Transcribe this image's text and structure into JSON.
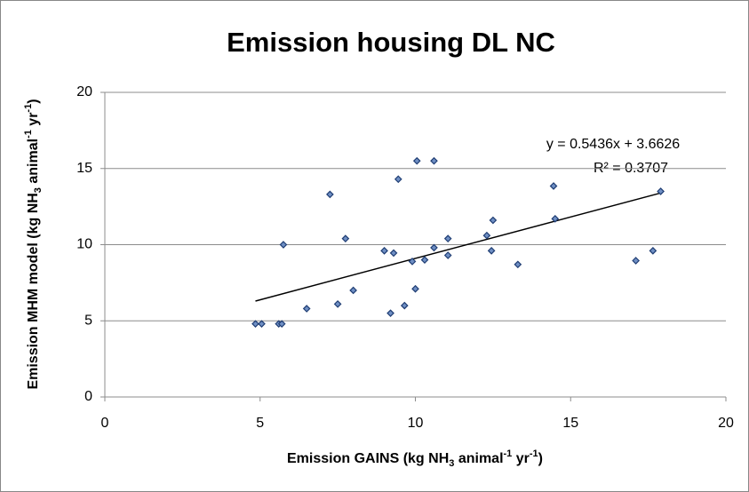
{
  "chart_data": {
    "type": "scatter",
    "title": "Emission housing DL NC",
    "x_label_parts": [
      "Emission GAINS (kg NH",
      "3",
      " animal",
      "-1",
      " yr",
      "-1",
      ")"
    ],
    "y_label_parts": [
      "Emission MHM model (kg NH",
      "3",
      " animal",
      "-1",
      " yr",
      "-1",
      ")"
    ],
    "x": [
      4.85,
      5.05,
      5.6,
      5.7,
      5.75,
      6.5,
      7.25,
      7.5,
      7.75,
      8.0,
      9.0,
      9.2,
      9.3,
      9.45,
      9.65,
      9.9,
      10.0,
      10.05,
      10.3,
      10.6,
      10.6,
      11.05,
      11.05,
      12.3,
      12.45,
      12.5,
      13.3,
      14.45,
      14.5,
      17.1,
      17.65,
      17.9
    ],
    "values": [
      4.8,
      4.8,
      4.8,
      4.8,
      10.0,
      5.8,
      13.3,
      6.1,
      10.4,
      7.0,
      9.6,
      5.5,
      9.45,
      14.3,
      6.0,
      8.9,
      7.1,
      15.5,
      9.0,
      9.8,
      15.5,
      10.4,
      9.3,
      10.6,
      9.6,
      11.6,
      8.7,
      13.85,
      11.7,
      8.95,
      9.6,
      13.5
    ],
    "color": "#1f3d73",
    "fill": "#6f8fc4",
    "xlim": [
      0,
      20
    ],
    "ylim": [
      0,
      20
    ],
    "xticks": [
      0,
      5,
      10,
      15,
      20
    ],
    "yticks": [
      0,
      5,
      10,
      15,
      20
    ],
    "grid": true,
    "trendline": {
      "slope": 0.5436,
      "intercept": 3.6626,
      "equation": "y = 0.5436x + 3.6626",
      "r2_label": "R² = 0.3707"
    }
  }
}
